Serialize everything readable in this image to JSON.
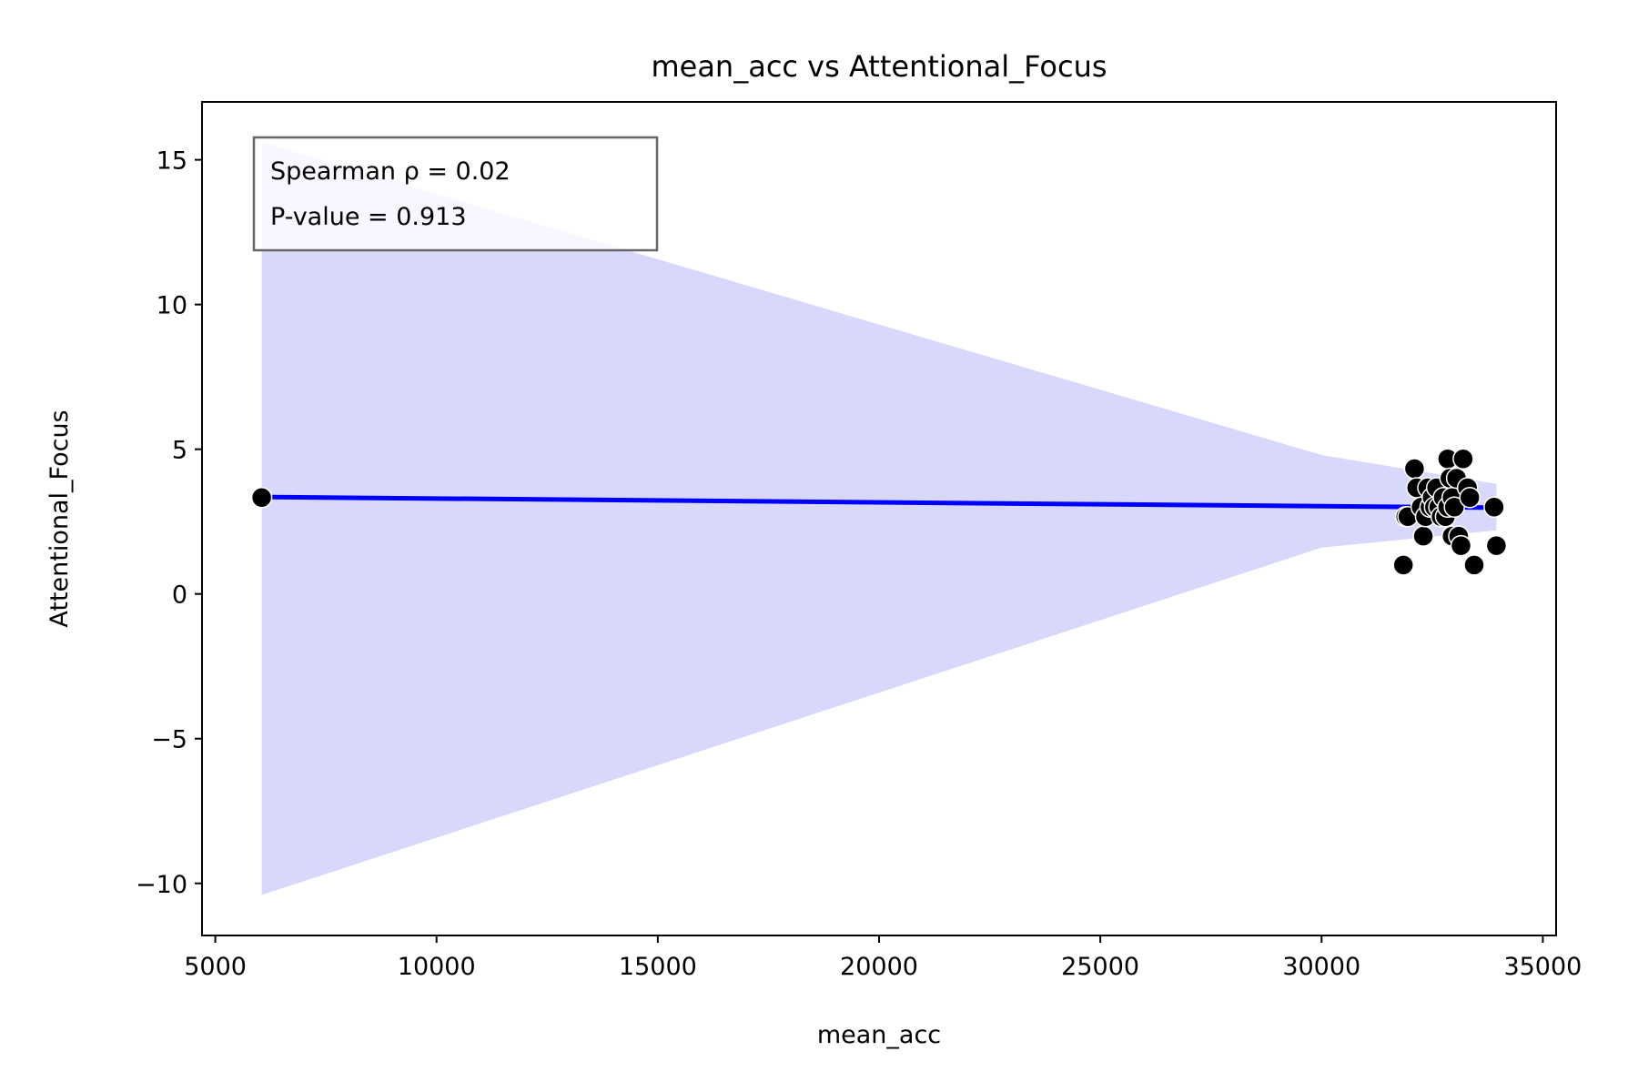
{
  "chart_data": {
    "type": "scatter",
    "title": "mean_acc vs Attentional_Focus",
    "xlabel": "mean_acc",
    "ylabel": "Attentional_Focus",
    "xlim": [
      4700,
      35300
    ],
    "ylim": [
      -11.8,
      17.0
    ],
    "xticks": [
      5000,
      10000,
      15000,
      20000,
      25000,
      30000,
      35000
    ],
    "xtick_labels": [
      "5000",
      "10000",
      "15000",
      "20000",
      "25000",
      "30000",
      "35000"
    ],
    "yticks": [
      -10,
      -5,
      0,
      5,
      10,
      15
    ],
    "ytick_labels": [
      "−10",
      "−5",
      "0",
      "5",
      "10",
      "15"
    ],
    "grid": false,
    "annotation": {
      "lines": [
        "Spearman ρ = 0.02",
        "P-value = 0.913"
      ],
      "placement": "top-left"
    },
    "points": [
      {
        "x": 6050,
        "y": 3.33
      },
      {
        "x": 31850,
        "y": 1.0
      },
      {
        "x": 31900,
        "y": 2.67
      },
      {
        "x": 31950,
        "y": 2.67
      },
      {
        "x": 32100,
        "y": 4.33
      },
      {
        "x": 32150,
        "y": 3.67
      },
      {
        "x": 32250,
        "y": 3.0
      },
      {
        "x": 32300,
        "y": 2.0
      },
      {
        "x": 32350,
        "y": 2.67
      },
      {
        "x": 32400,
        "y": 3.67
      },
      {
        "x": 32450,
        "y": 3.0
      },
      {
        "x": 32500,
        "y": 3.33
      },
      {
        "x": 32550,
        "y": 3.0
      },
      {
        "x": 32600,
        "y": 3.67
      },
      {
        "x": 32650,
        "y": 3.0
      },
      {
        "x": 32700,
        "y": 2.67
      },
      {
        "x": 32750,
        "y": 3.33
      },
      {
        "x": 32800,
        "y": 2.67
      },
      {
        "x": 32850,
        "y": 4.67
      },
      {
        "x": 32850,
        "y": 3.0
      },
      {
        "x": 32900,
        "y": 4.0
      },
      {
        "x": 32950,
        "y": 3.33
      },
      {
        "x": 32950,
        "y": 2.0
      },
      {
        "x": 33000,
        "y": 3.0
      },
      {
        "x": 33050,
        "y": 4.0
      },
      {
        "x": 33100,
        "y": 2.0
      },
      {
        "x": 33150,
        "y": 1.67
      },
      {
        "x": 33200,
        "y": 4.67
      },
      {
        "x": 33300,
        "y": 3.67
      },
      {
        "x": 33350,
        "y": 3.33
      },
      {
        "x": 33450,
        "y": 1.0
      },
      {
        "x": 33900,
        "y": 3.0
      },
      {
        "x": 33950,
        "y": 1.67
      }
    ],
    "regression": {
      "x": [
        6050,
        33950
      ],
      "y": [
        3.35,
        2.98
      ]
    },
    "confidence_band": {
      "upper": [
        [
          6050,
          15.6
        ],
        [
          30000,
          4.8
        ],
        [
          33950,
          3.8
        ]
      ],
      "lower": [
        [
          33950,
          2.2
        ],
        [
          30000,
          1.6
        ],
        [
          6050,
          -10.4
        ]
      ]
    },
    "colors": {
      "line": "#0000ff",
      "band": "#d8d8fc",
      "points": "#000000",
      "point_edge": "#ffffff",
      "annotation_border": "#666666"
    }
  }
}
